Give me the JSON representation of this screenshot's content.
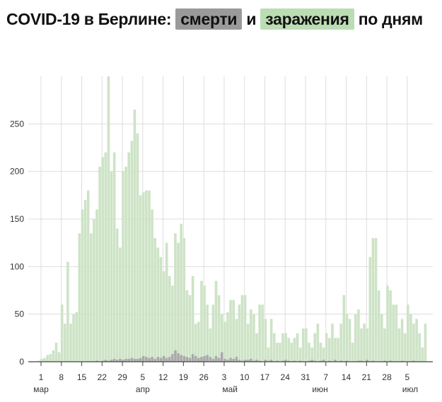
{
  "title": {
    "prefix": "COVID-19 в Берлине:",
    "deaths": "смерти",
    "conj": "и",
    "cases": "заражения",
    "suffix": "по дням"
  },
  "colors": {
    "cases": "#cde3c6",
    "deaths": "#a9a9a9",
    "deaths_highlight": "#9a9a9a",
    "cases_highlight": "#bcdcb4",
    "grid": "#dddddd",
    "axis": "#444444"
  },
  "chart_data": {
    "type": "bar",
    "ylim": [
      0,
      300
    ],
    "y_ticks": [
      0,
      50,
      100,
      150,
      200,
      250
    ],
    "x_tick_labels": [
      "1",
      "8",
      "15",
      "22",
      "29",
      "5",
      "12",
      "19",
      "26",
      "3",
      "10",
      "17",
      "24",
      "31",
      "7",
      "14",
      "21",
      "28",
      "5"
    ],
    "month_labels": [
      {
        "label": "мар",
        "day_index": 0
      },
      {
        "label": "апр",
        "day_index": 35
      },
      {
        "label": "май",
        "day_index": 65
      },
      {
        "label": "июн",
        "day_index": 96
      },
      {
        "label": "июл",
        "day_index": 127
      }
    ],
    "x_start": "1 мар",
    "series": [
      {
        "key": "cases",
        "values": [
          1,
          3,
          4,
          7,
          8,
          12,
          20,
          10,
          60,
          40,
          105,
          40,
          50,
          52,
          135,
          160,
          170,
          180,
          135,
          150,
          160,
          205,
          215,
          220,
          300,
          200,
          220,
          140,
          120,
          200,
          205,
          220,
          232,
          265,
          240,
          175,
          178,
          180,
          180,
          160,
          130,
          120,
          110,
          95,
          125,
          90,
          80,
          135,
          125,
          145,
          130,
          75,
          70,
          90,
          40,
          42,
          85,
          80,
          60,
          35,
          60,
          85,
          70,
          50,
          42,
          52,
          65,
          65,
          45,
          60,
          70,
          70,
          40,
          55,
          50,
          30,
          60,
          60,
          45,
          15,
          45,
          30,
          20,
          20,
          30,
          30,
          25,
          20,
          25,
          30,
          15,
          35,
          35,
          20,
          15,
          30,
          40,
          20,
          15,
          30,
          25,
          40,
          25,
          25,
          40,
          70,
          50,
          45,
          20,
          50,
          55,
          35,
          40,
          35,
          110,
          130,
          130,
          75,
          50,
          35,
          80,
          75,
          60,
          60,
          35,
          45,
          30,
          60,
          50,
          40,
          45,
          30,
          15,
          40
        ]
      },
      {
        "key": "deaths",
        "values": [
          0,
          0,
          0,
          0,
          0,
          0,
          0,
          0,
          0,
          0,
          0,
          0,
          0,
          0,
          0,
          0,
          0,
          0,
          0,
          0,
          1,
          0,
          1,
          2,
          1,
          2,
          3,
          2,
          3,
          2,
          3,
          3,
          4,
          3,
          3,
          4,
          6,
          5,
          4,
          5,
          3,
          5,
          4,
          6,
          4,
          5,
          8,
          12,
          9,
          7,
          6,
          5,
          4,
          8,
          6,
          4,
          5,
          6,
          7,
          5,
          3,
          6,
          4,
          10,
          3,
          2,
          4,
          3,
          5,
          2,
          1,
          2,
          2,
          3,
          1,
          2,
          1,
          0,
          2,
          1,
          2,
          0,
          1,
          0,
          1,
          2,
          1,
          0,
          1,
          0,
          1,
          0,
          0,
          1,
          2,
          1,
          0,
          1,
          2,
          0,
          1,
          0,
          2,
          0,
          1,
          0,
          1,
          0,
          0,
          0,
          1,
          1,
          0,
          2,
          0,
          1,
          0,
          0,
          0,
          1,
          0,
          1,
          0,
          0,
          0,
          1,
          0,
          0,
          0,
          1,
          0,
          0,
          0,
          0
        ]
      }
    ]
  }
}
